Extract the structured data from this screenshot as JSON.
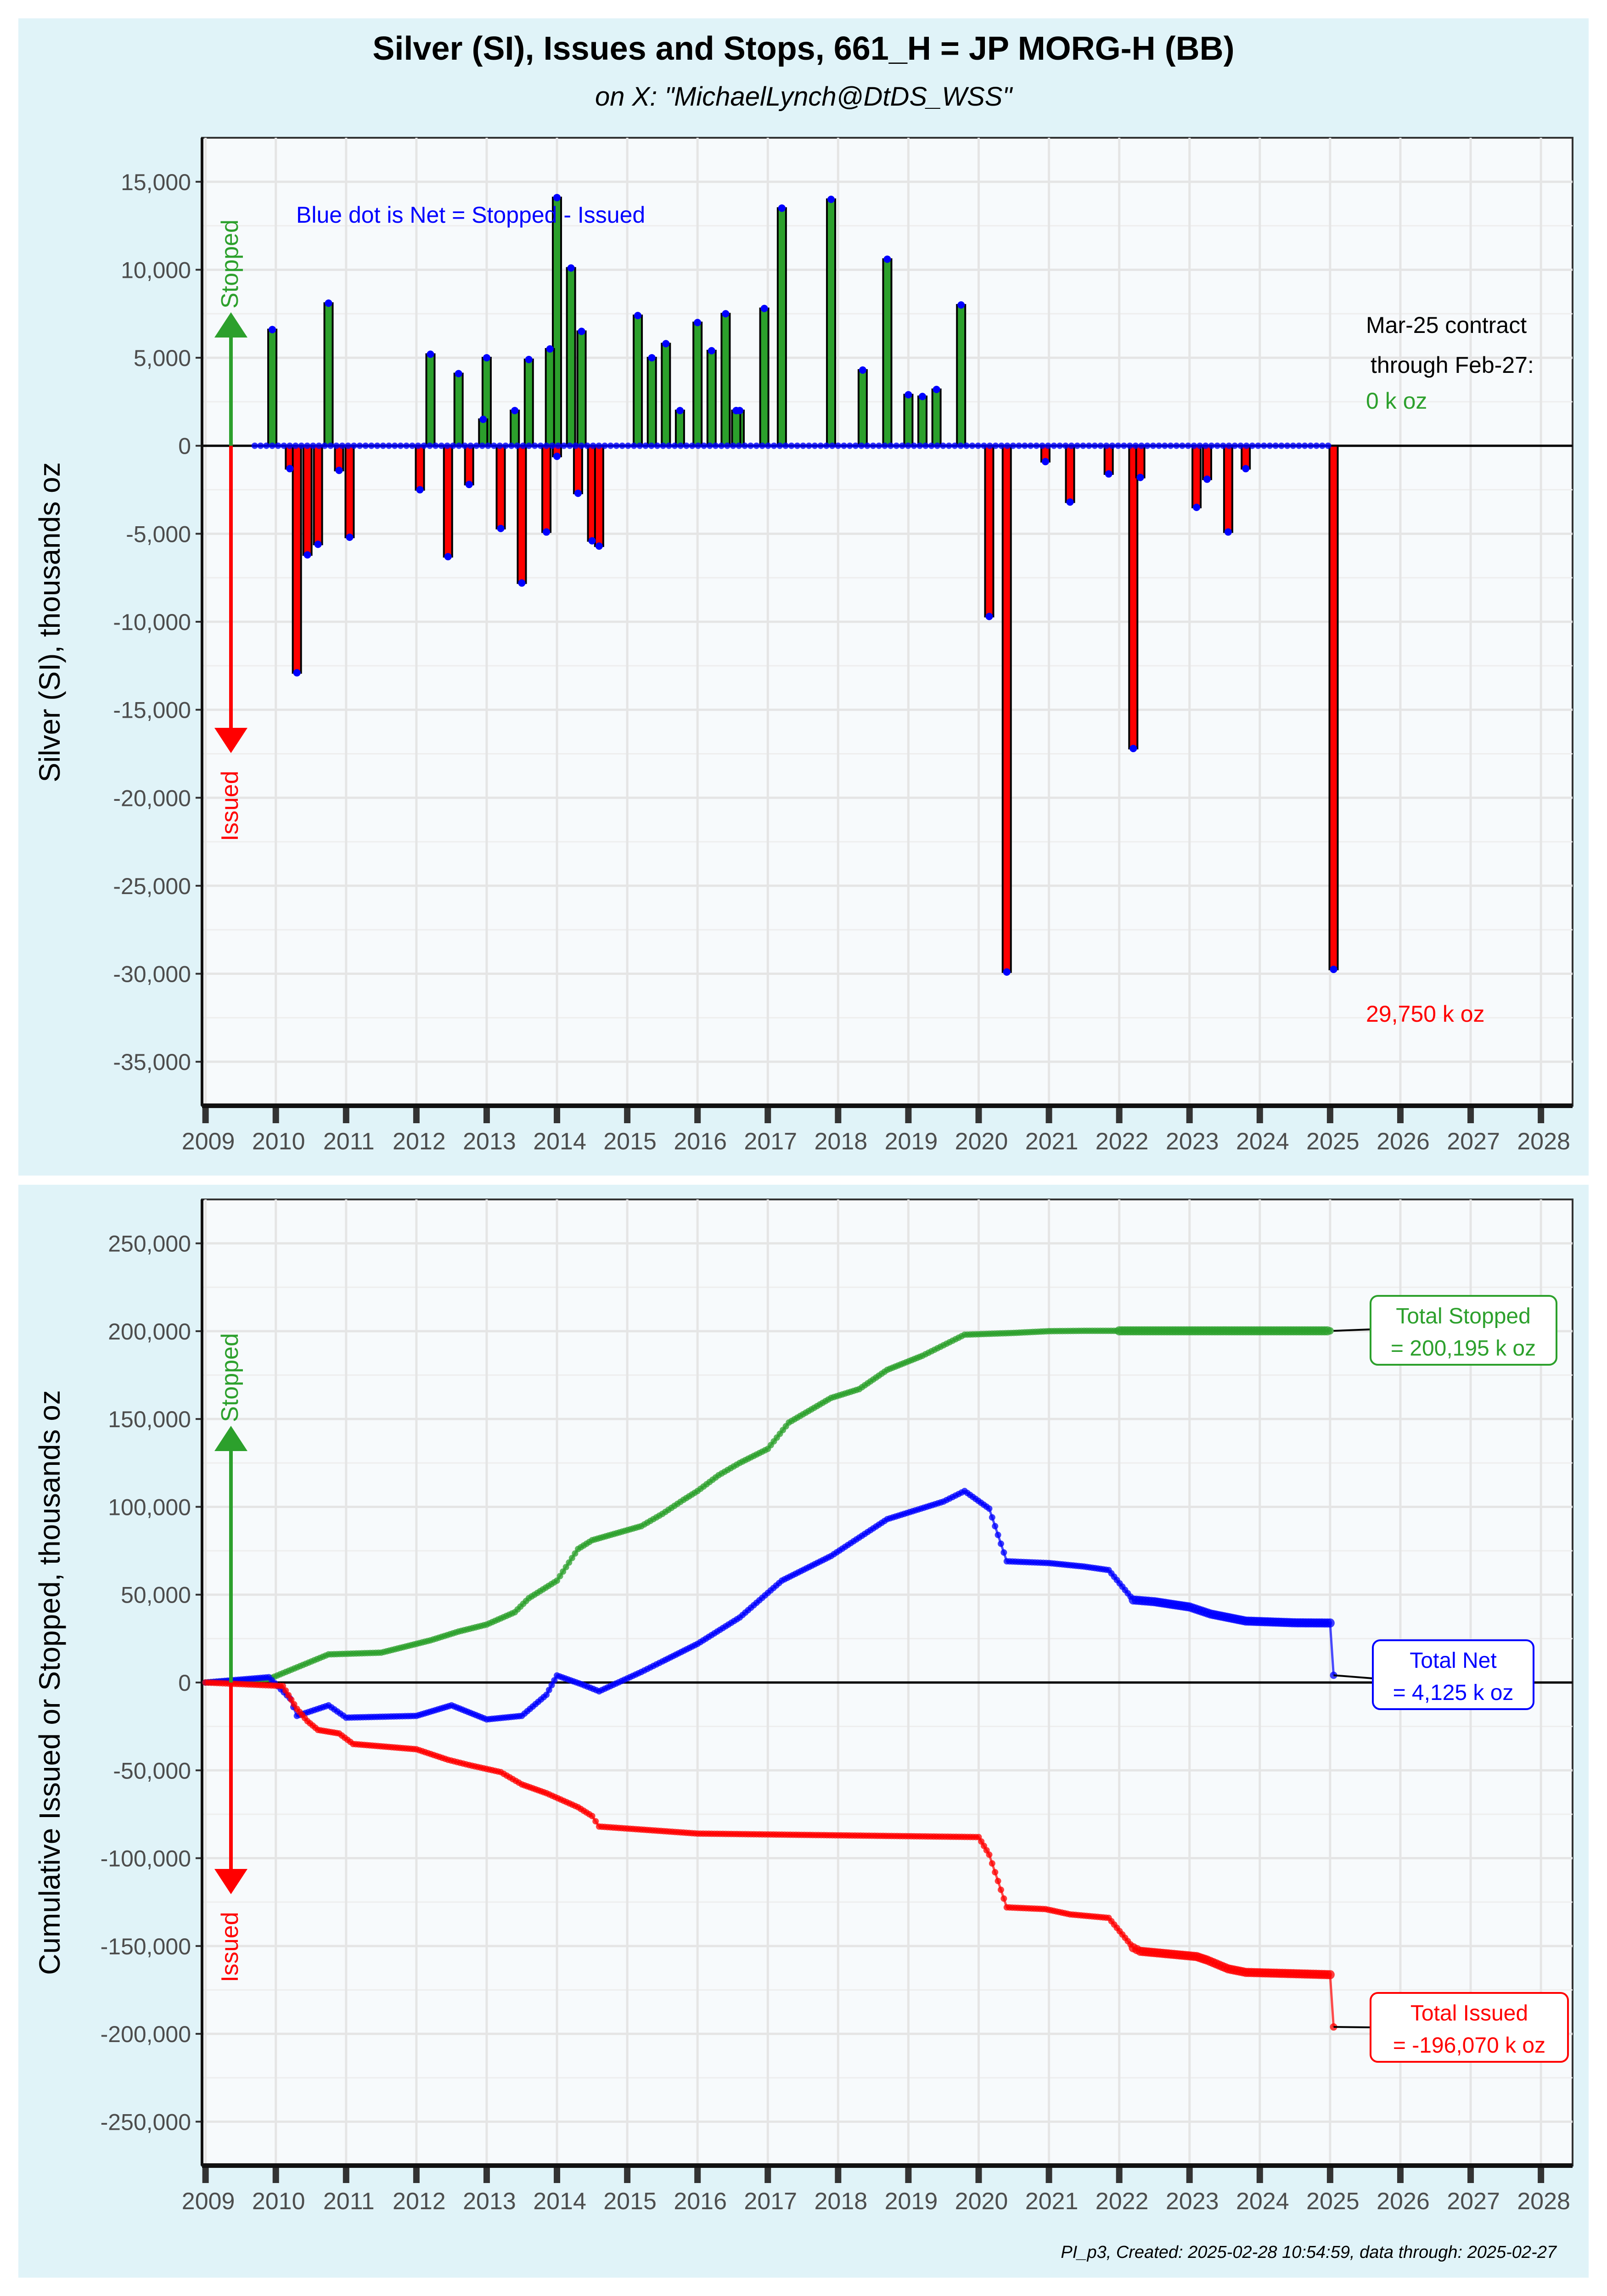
{
  "header": {
    "title": "Silver (SI), Issues and Stops, 661_H = JP MORG-H (BB)",
    "subtitle": "on X:   \"MichaelLynch@DtDS_WSS\""
  },
  "footer": "PI_p3, Created: 2025-02-28 10:54:59, data through: 2025-02-27",
  "colors": {
    "stopped": "#2ca02c",
    "issued": "#ff0000",
    "net": "#0000ff",
    "strip": "#e0f3f8",
    "panel": "#f7fafc"
  },
  "x_axis": {
    "ticks": [
      "2009",
      "2010",
      "2011",
      "2012",
      "2013",
      "2014",
      "2015",
      "2016",
      "2017",
      "2018",
      "2019",
      "2020",
      "2021",
      "2022",
      "2023",
      "2024",
      "2025",
      "2026",
      "2027",
      "2028"
    ],
    "range": [
      2008.95,
      2028.45
    ]
  },
  "panel1": {
    "ylabel": "Silver (SI), thousands oz",
    "ylim": [
      -37500,
      17500
    ],
    "yticks": [
      15000,
      10000,
      5000,
      0,
      -5000,
      -10000,
      -15000,
      -20000,
      -25000,
      -30000,
      -35000
    ],
    "ytick_labels": [
      "15,000",
      "10,000",
      "5,000",
      "0",
      "-5,000",
      "-10,000",
      "-15,000",
      "-20,000",
      "-25,000",
      "-30,000",
      "-35,000"
    ],
    "note": "Blue dot is Net = Stopped - Issued",
    "arrow_stopped": "Stopped",
    "arrow_issued": "Issued",
    "contract_line1": "Mar-25 contract",
    "contract_line2": "through Feb-27:",
    "contract_value": "0 k oz",
    "issued_value": "29,750 k oz"
  },
  "panel2": {
    "ylabel": "Cumulative Issued or Stopped, thousands oz",
    "ylim": [
      -275000,
      275000
    ],
    "yticks": [
      250000,
      200000,
      150000,
      100000,
      50000,
      0,
      -50000,
      -100000,
      -150000,
      -200000,
      -250000
    ],
    "ytick_labels": [
      "250,000",
      "200,000",
      "150,000",
      "100,000",
      "50,000",
      "0",
      "-50,000",
      "-100,000",
      "-150,000",
      "-200,000",
      "-250,000"
    ],
    "arrow_stopped": "Stopped",
    "arrow_issued": "Issued",
    "box_stopped_1": "Total Stopped",
    "box_stopped_2": "= 200,195 k oz",
    "box_net_1": "Total Net",
    "box_net_2": "= 4,125 k oz",
    "box_issued_1": "Total Issued",
    "box_issued_2": "= -196,070 k oz"
  },
  "chart_data": [
    {
      "type": "bar",
      "title": "Silver (SI), Issues and Stops, 661_H = JP MORG-H (BB)",
      "ylabel": "Silver (SI), thousands oz",
      "ylim": [
        -37500,
        17500
      ],
      "series": [
        {
          "name": "Stopped",
          "x": [
            2009.95,
            2010.75,
            2012.2,
            2012.6,
            2013.0,
            2013.4,
            2013.6,
            2014.0,
            2014.2,
            2014.35,
            2015.15,
            2015.35,
            2015.55,
            2015.75,
            2016.0,
            2016.2,
            2016.4,
            2016.6,
            2016.95,
            2017.2,
            2017.9,
            2018.35,
            2018.7,
            2019.0,
            2019.2,
            2019.4,
            2019.75,
            2012.95,
            2016.55,
            2013.9
          ],
          "values": [
            6600,
            8100,
            5200,
            4100,
            5000,
            2000,
            4900,
            14100,
            10100,
            6500,
            7400,
            5000,
            5800,
            2000,
            7000,
            5400,
            7500,
            2000,
            7800,
            13500,
            14000,
            4300,
            10600,
            2900,
            2800,
            3200,
            8000,
            1500,
            2000,
            5500
          ]
        },
        {
          "name": "Issued",
          "x": [
            2010.2,
            2010.3,
            2010.45,
            2010.6,
            2010.9,
            2011.05,
            2012.05,
            2012.45,
            2012.75,
            2013.2,
            2013.5,
            2013.85,
            2014.0,
            2014.3,
            2014.5,
            2014.6,
            2020.15,
            2020.4,
            2020.95,
            2021.3,
            2021.85,
            2022.2,
            2022.3,
            2023.1,
            2023.25,
            2023.55,
            2023.8,
            2025.05
          ],
          "values": [
            -1300,
            -12900,
            -6200,
            -5600,
            -1400,
            -5200,
            -2500,
            -6300,
            -2200,
            -4700,
            -7800,
            -4900,
            -600,
            -2700,
            -5400,
            -5700,
            -9700,
            -29900,
            -900,
            -3200,
            -1600,
            -17200,
            -1800,
            -3500,
            -1900,
            -4900,
            -1300,
            -29750
          ]
        },
        {
          "name": "Net",
          "x": [
            2009.95,
            2010.2,
            2010.3,
            2010.75,
            2013.85,
            2014.0,
            2014.35,
            2016.55,
            2017.2,
            2020.4,
            2022.2,
            2025.05
          ],
          "values": [
            6600,
            -1300,
            -12900,
            8100,
            -4900,
            14100,
            6500,
            2000,
            13500,
            -29900,
            -17200,
            -29750
          ]
        }
      ]
    },
    {
      "type": "line",
      "ylabel": "Cumulative Issued or Stopped, thousands oz",
      "ylim": [
        -275000,
        275000
      ],
      "series": [
        {
          "name": "Total Stopped",
          "x": [
            2009,
            2009.9,
            2010.75,
            2011.5,
            2012.2,
            2012.6,
            2013.0,
            2013.4,
            2013.6,
            2014.0,
            2014.3,
            2014.5,
            2015.2,
            2015.5,
            2015.8,
            2016.0,
            2016.3,
            2016.6,
            2017.0,
            2017.3,
            2017.9,
            2018.3,
            2018.7,
            2019.2,
            2019.5,
            2019.8,
            2020.5,
            2021.0,
            2021.5,
            2022.0,
            2023.0,
            2024.0,
            2025.0
          ],
          "values": [
            0,
            2000,
            16000,
            17000,
            24000,
            29000,
            33000,
            40000,
            48000,
            58000,
            76000,
            81000,
            89000,
            96000,
            104000,
            109000,
            118000,
            125000,
            133000,
            148000,
            162000,
            167000,
            178000,
            186000,
            192000,
            198000,
            199000,
            200000,
            200195,
            200195,
            200195,
            200195,
            200195
          ]
        },
        {
          "name": "Total Net",
          "x": [
            2009,
            2009.9,
            2010.2,
            2010.3,
            2010.75,
            2011.0,
            2012.0,
            2012.5,
            2013.0,
            2013.5,
            2013.85,
            2014.0,
            2014.35,
            2014.6,
            2015.2,
            2015.5,
            2016.0,
            2016.6,
            2017.2,
            2017.9,
            2018.7,
            2019.5,
            2019.8,
            2020.15,
            2020.4,
            2021.0,
            2021.5,
            2021.85,
            2022.2,
            2022.5,
            2023.0,
            2023.3,
            2023.8,
            2024.5,
            2025.0,
            2025.05
          ],
          "values": [
            0,
            3000,
            -9000,
            -19000,
            -13000,
            -20000,
            -19000,
            -13000,
            -21000,
            -19000,
            -7000,
            4000,
            -1000,
            -5000,
            6000,
            12000,
            22000,
            37000,
            58000,
            72000,
            93000,
            103000,
            109000,
            99000,
            69000,
            68000,
            66000,
            64000,
            47000,
            46000,
            43000,
            39000,
            35000,
            34000,
            33875,
            4125
          ]
        },
        {
          "name": "Total Issued",
          "x": [
            2009,
            2010.1,
            2010.3,
            2010.45,
            2010.6,
            2010.9,
            2011.1,
            2012.0,
            2012.45,
            2012.75,
            2013.2,
            2013.5,
            2013.85,
            2014.3,
            2014.5,
            2014.6,
            2016.0,
            2018.0,
            2020.0,
            2020.15,
            2020.4,
            2020.95,
            2021.3,
            2021.85,
            2022.2,
            2022.3,
            2023.1,
            2023.25,
            2023.55,
            2023.8,
            2025.0,
            2025.05
          ],
          "values": [
            0,
            -2000,
            -15000,
            -22000,
            -27000,
            -29000,
            -35000,
            -38000,
            -44000,
            -47000,
            -51000,
            -58000,
            -63000,
            -71000,
            -76000,
            -82000,
            -86000,
            -87000,
            -88000,
            -98000,
            -128000,
            -129000,
            -132000,
            -134000,
            -151000,
            -153000,
            -156000,
            -158000,
            -163000,
            -165000,
            -166320,
            -196070
          ]
        }
      ]
    }
  ]
}
